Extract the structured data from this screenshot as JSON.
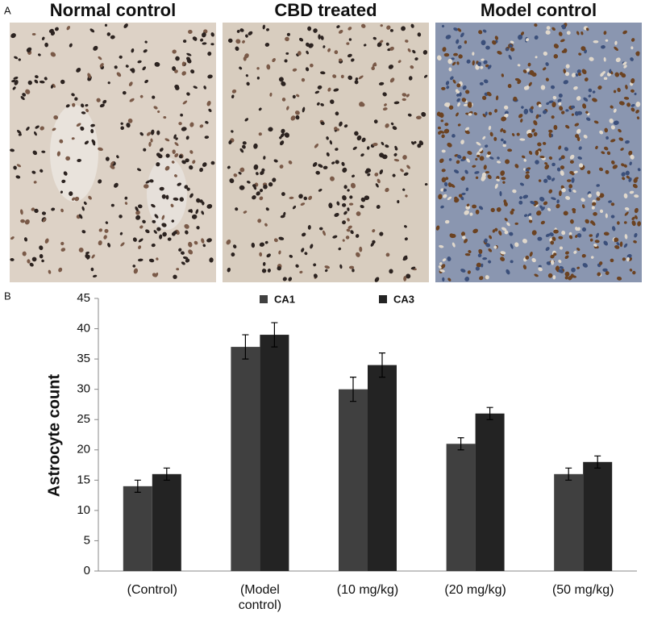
{
  "panels": {
    "a_label": "A",
    "b_label": "B",
    "images": [
      {
        "title": "Normal control"
      },
      {
        "title": "CBD treated"
      },
      {
        "title": "Model control"
      }
    ]
  },
  "chart_data": {
    "type": "bar",
    "ylabel": "Astrocyte count",
    "categories": [
      "(Control)",
      "(Model control)",
      "(10 mg/kg)",
      "(20 mg/kg)",
      "(50 mg/kg)"
    ],
    "series": [
      {
        "name": "CA1",
        "color": "#404040",
        "values": [
          14,
          37,
          30,
          21,
          16
        ],
        "errors": [
          1,
          2,
          2,
          1,
          1
        ]
      },
      {
        "name": "CA3",
        "color": "#232323",
        "values": [
          16,
          39,
          34,
          26,
          18
        ],
        "errors": [
          1,
          2,
          2,
          1,
          1
        ]
      }
    ],
    "ylim": [
      0,
      45
    ],
    "yticks": [
      0,
      5,
      10,
      15,
      20,
      25,
      30,
      35,
      40,
      45
    ],
    "legend": "top"
  }
}
